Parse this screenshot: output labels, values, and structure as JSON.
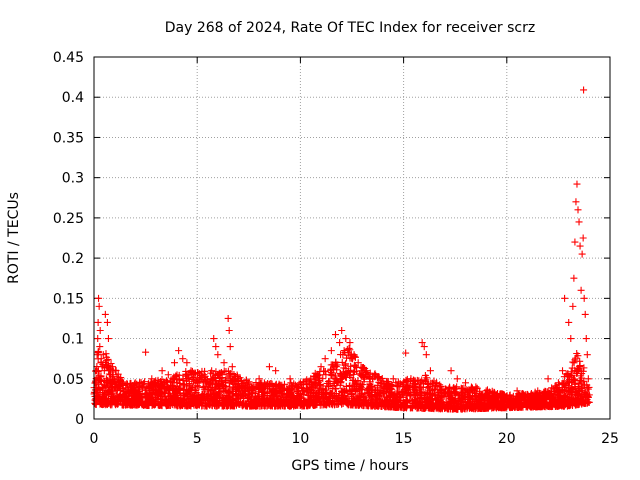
{
  "chart_data": {
    "type": "scatter",
    "title": "Day 268 of 2024, Rate Of TEC Index for receiver scrz",
    "xlabel": "GPS time / hours",
    "ylabel": "ROTI / TECUs",
    "xlim": [
      0,
      25
    ],
    "ylim": [
      0,
      0.45
    ],
    "xticks": [
      0,
      5,
      10,
      15,
      20,
      25
    ],
    "xtick_labels": [
      "0",
      "5",
      "10",
      "15",
      "20",
      "25"
    ],
    "yticks": [
      0,
      0.05,
      0.1,
      0.15,
      0.2,
      0.25,
      0.3,
      0.35,
      0.4,
      0.45
    ],
    "ytick_labels": [
      "0",
      "0.05",
      "0.1",
      "0.15",
      "0.2",
      "0.25",
      "0.3",
      "0.35",
      "0.4",
      "0.45"
    ],
    "grid": true,
    "marker": "+",
    "color": "#ff0000",
    "series": [
      {
        "name": "ROTI",
        "points": [
          [
            0.05,
            0.028
          ],
          [
            0.1,
            0.045
          ],
          [
            0.12,
            0.06
          ],
          [
            0.15,
            0.08
          ],
          [
            0.18,
            0.1
          ],
          [
            0.2,
            0.12
          ],
          [
            0.22,
            0.15
          ],
          [
            0.25,
            0.14
          ],
          [
            0.28,
            0.09
          ],
          [
            0.3,
            0.11
          ],
          [
            0.35,
            0.075
          ],
          [
            0.4,
            0.065
          ],
          [
            0.45,
            0.08
          ],
          [
            0.5,
            0.06
          ],
          [
            0.55,
            0.13
          ],
          [
            0.6,
            0.05
          ],
          [
            0.65,
            0.12
          ],
          [
            0.7,
            0.1
          ],
          [
            0.8,
            0.055
          ],
          [
            0.9,
            0.065
          ],
          [
            1.0,
            0.045
          ],
          [
            1.2,
            0.05
          ],
          [
            1.4,
            0.038
          ],
          [
            1.6,
            0.042
          ],
          [
            1.8,
            0.035
          ],
          [
            2.0,
            0.045
          ],
          [
            2.2,
            0.04
          ],
          [
            2.5,
            0.083
          ],
          [
            2.8,
            0.05
          ],
          [
            3.0,
            0.045
          ],
          [
            3.3,
            0.06
          ],
          [
            3.6,
            0.055
          ],
          [
            3.9,
            0.07
          ],
          [
            4.1,
            0.085
          ],
          [
            4.3,
            0.075
          ],
          [
            4.5,
            0.07
          ],
          [
            4.7,
            0.06
          ],
          [
            5.0,
            0.05
          ],
          [
            5.3,
            0.045
          ],
          [
            5.7,
            0.06
          ],
          [
            5.8,
            0.1
          ],
          [
            5.9,
            0.09
          ],
          [
            6.0,
            0.08
          ],
          [
            6.3,
            0.07
          ],
          [
            6.5,
            0.125
          ],
          [
            6.55,
            0.11
          ],
          [
            6.6,
            0.09
          ],
          [
            6.7,
            0.065
          ],
          [
            7.0,
            0.04
          ],
          [
            7.5,
            0.035
          ],
          [
            8.0,
            0.05
          ],
          [
            8.5,
            0.065
          ],
          [
            8.8,
            0.06
          ],
          [
            9.0,
            0.04
          ],
          [
            9.5,
            0.05
          ],
          [
            10.0,
            0.045
          ],
          [
            10.5,
            0.05
          ],
          [
            11.0,
            0.065
          ],
          [
            11.2,
            0.075
          ],
          [
            11.5,
            0.085
          ],
          [
            11.7,
            0.105
          ],
          [
            11.9,
            0.095
          ],
          [
            12.0,
            0.11
          ],
          [
            12.2,
            0.1
          ],
          [
            12.4,
            0.095
          ],
          [
            12.6,
            0.08
          ],
          [
            12.8,
            0.07
          ],
          [
            13.2,
            0.06
          ],
          [
            13.6,
            0.055
          ],
          [
            14.0,
            0.04
          ],
          [
            14.5,
            0.05
          ],
          [
            15.0,
            0.045
          ],
          [
            15.1,
            0.082
          ],
          [
            15.5,
            0.04
          ],
          [
            15.9,
            0.095
          ],
          [
            16.0,
            0.09
          ],
          [
            16.1,
            0.08
          ],
          [
            16.3,
            0.06
          ],
          [
            16.8,
            0.04
          ],
          [
            17.3,
            0.06
          ],
          [
            17.6,
            0.05
          ],
          [
            18.0,
            0.045
          ],
          [
            18.5,
            0.04
          ],
          [
            19.0,
            0.035
          ],
          [
            19.5,
            0.03
          ],
          [
            20.0,
            0.025
          ],
          [
            20.5,
            0.035
          ],
          [
            21.0,
            0.03
          ],
          [
            21.5,
            0.035
          ],
          [
            22.0,
            0.05
          ],
          [
            22.5,
            0.045
          ],
          [
            22.7,
            0.06
          ],
          [
            22.8,
            0.15
          ],
          [
            23.0,
            0.12
          ],
          [
            23.1,
            0.1
          ],
          [
            23.2,
            0.14
          ],
          [
            23.25,
            0.175
          ],
          [
            23.3,
            0.22
          ],
          [
            23.35,
            0.27
          ],
          [
            23.4,
            0.292
          ],
          [
            23.45,
            0.26
          ],
          [
            23.5,
            0.245
          ],
          [
            23.55,
            0.215
          ],
          [
            23.6,
            0.16
          ],
          [
            23.65,
            0.205
          ],
          [
            23.7,
            0.225
          ],
          [
            23.72,
            0.409
          ],
          [
            23.75,
            0.15
          ],
          [
            23.8,
            0.13
          ],
          [
            23.85,
            0.1
          ],
          [
            23.9,
            0.08
          ],
          [
            23.95,
            0.05
          ],
          [
            24.0,
            0.03
          ]
        ]
      }
    ],
    "band": {
      "min": [
        [
          0,
          0.018
        ],
        [
          2,
          0.017
        ],
        [
          5,
          0.016
        ],
        [
          10,
          0.016
        ],
        [
          12,
          0.018
        ],
        [
          15,
          0.014
        ],
        [
          17.5,
          0.012
        ],
        [
          20,
          0.014
        ],
        [
          23,
          0.016
        ],
        [
          24,
          0.02
        ]
      ],
      "max": [
        [
          0,
          0.07
        ],
        [
          0.3,
          0.1
        ],
        [
          0.8,
          0.07
        ],
        [
          1.5,
          0.045
        ],
        [
          3.5,
          0.05
        ],
        [
          4.5,
          0.06
        ],
        [
          6.5,
          0.06
        ],
        [
          8,
          0.045
        ],
        [
          10,
          0.045
        ],
        [
          11.5,
          0.07
        ],
        [
          12.3,
          0.09
        ],
        [
          13,
          0.065
        ],
        [
          14.5,
          0.045
        ],
        [
          16,
          0.055
        ],
        [
          17,
          0.04
        ],
        [
          18.5,
          0.04
        ],
        [
          20,
          0.03
        ],
        [
          22,
          0.035
        ],
        [
          23,
          0.06
        ],
        [
          23.5,
          0.09
        ],
        [
          24,
          0.04
        ]
      ],
      "count": 3600
    }
  }
}
